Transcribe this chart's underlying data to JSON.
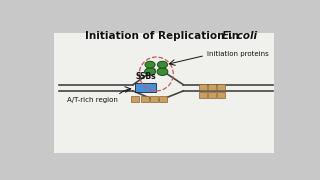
{
  "title_normal": "Initiation of Replication in ",
  "title_italic": "E. coli",
  "bg_color": "#c8c8c8",
  "panel_bg": "#f0f0ec",
  "line_color": "#444444",
  "line_lw": 1.2,
  "ssb_label": "SSBs",
  "initiation_label": "Initiation proteins",
  "at_rich_label": "A/T-rich region",
  "blue_color": "#4a90d9",
  "tan_color": "#c8a060",
  "tan_edge": "#8b6030",
  "green_color": "#3a8c35",
  "green_dark": "#1a5018",
  "circle_color": "#cc5555",
  "black": "#111111",
  "white": "#f8f8f8"
}
